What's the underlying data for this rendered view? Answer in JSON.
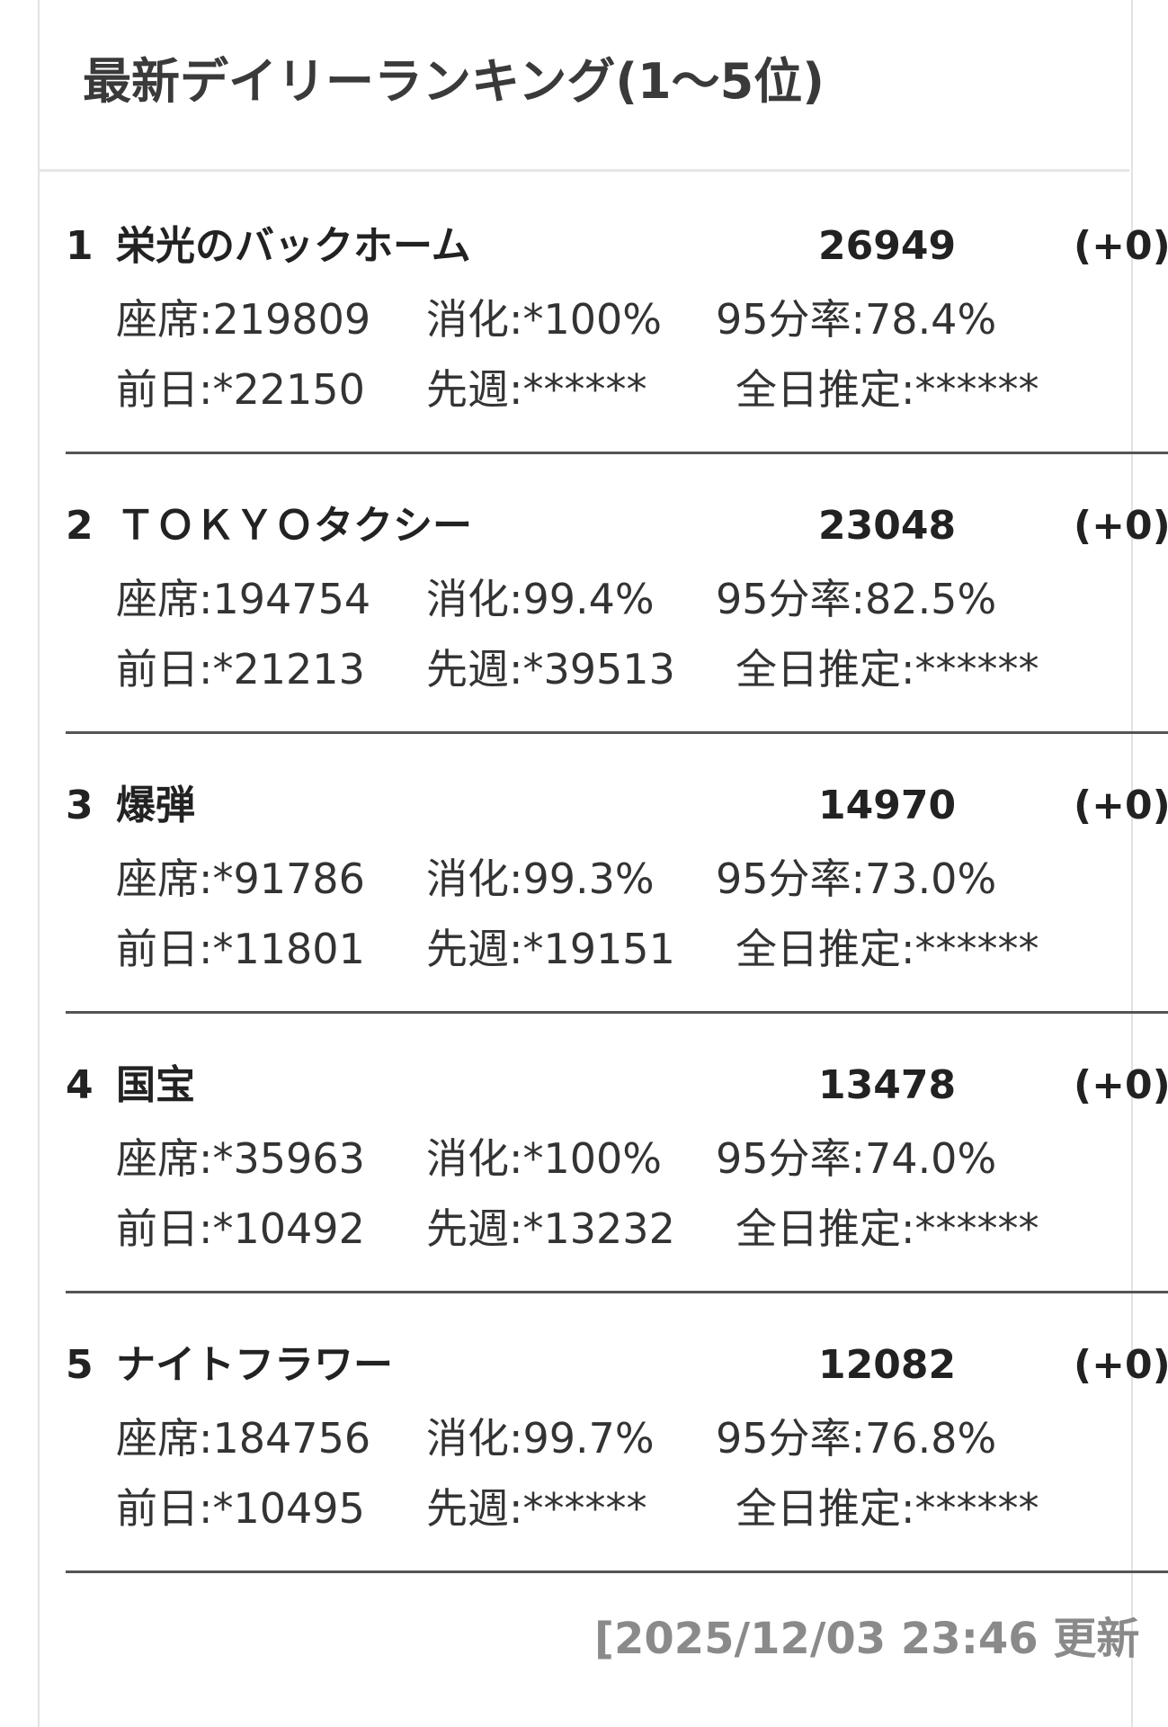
{
  "header": {
    "title": "最新デイリーランキング(1〜5位)"
  },
  "entries": [
    {
      "rank": "1",
      "title": "栄光のバックホーム",
      "count": "26949",
      "change": "(+0)",
      "line1": [
        "座席:219809",
        "消化:*100%",
        "95分率:78.4%"
      ],
      "line2": [
        "前日:*22150",
        "先週:******",
        "全日推定:******"
      ]
    },
    {
      "rank": "2",
      "title": "ＴＯＫＹＯタクシー",
      "count": "23048",
      "change": "(+0)",
      "line1": [
        "座席:194754",
        "消化:99.4%",
        "95分率:82.5%"
      ],
      "line2": [
        "前日:*21213",
        "先週:*39513",
        "全日推定:******"
      ]
    },
    {
      "rank": "3",
      "title": "爆弾",
      "count": "14970",
      "change": "(+0)",
      "line1": [
        "座席:*91786",
        "消化:99.3%",
        "95分率:73.0%"
      ],
      "line2": [
        "前日:*11801",
        "先週:*19151",
        "全日推定:******"
      ]
    },
    {
      "rank": "4",
      "title": "国宝",
      "count": "13478",
      "change": "(+0)",
      "line1": [
        "座席:*35963",
        "消化:*100%",
        "95分率:74.0%"
      ],
      "line2": [
        "前日:*10492",
        "先週:*13232",
        "全日推定:******"
      ]
    },
    {
      "rank": "5",
      "title": "ナイトフラワー",
      "count": "12082",
      "change": "(+0)",
      "line1": [
        "座席:184756",
        "消化:99.7%",
        "95分率:76.8%"
      ],
      "line2": [
        "前日:*10495",
        "先週:******",
        "全日推定:******"
      ]
    }
  ],
  "footer": {
    "updated": "[2025/12/03 23:46 更新"
  }
}
